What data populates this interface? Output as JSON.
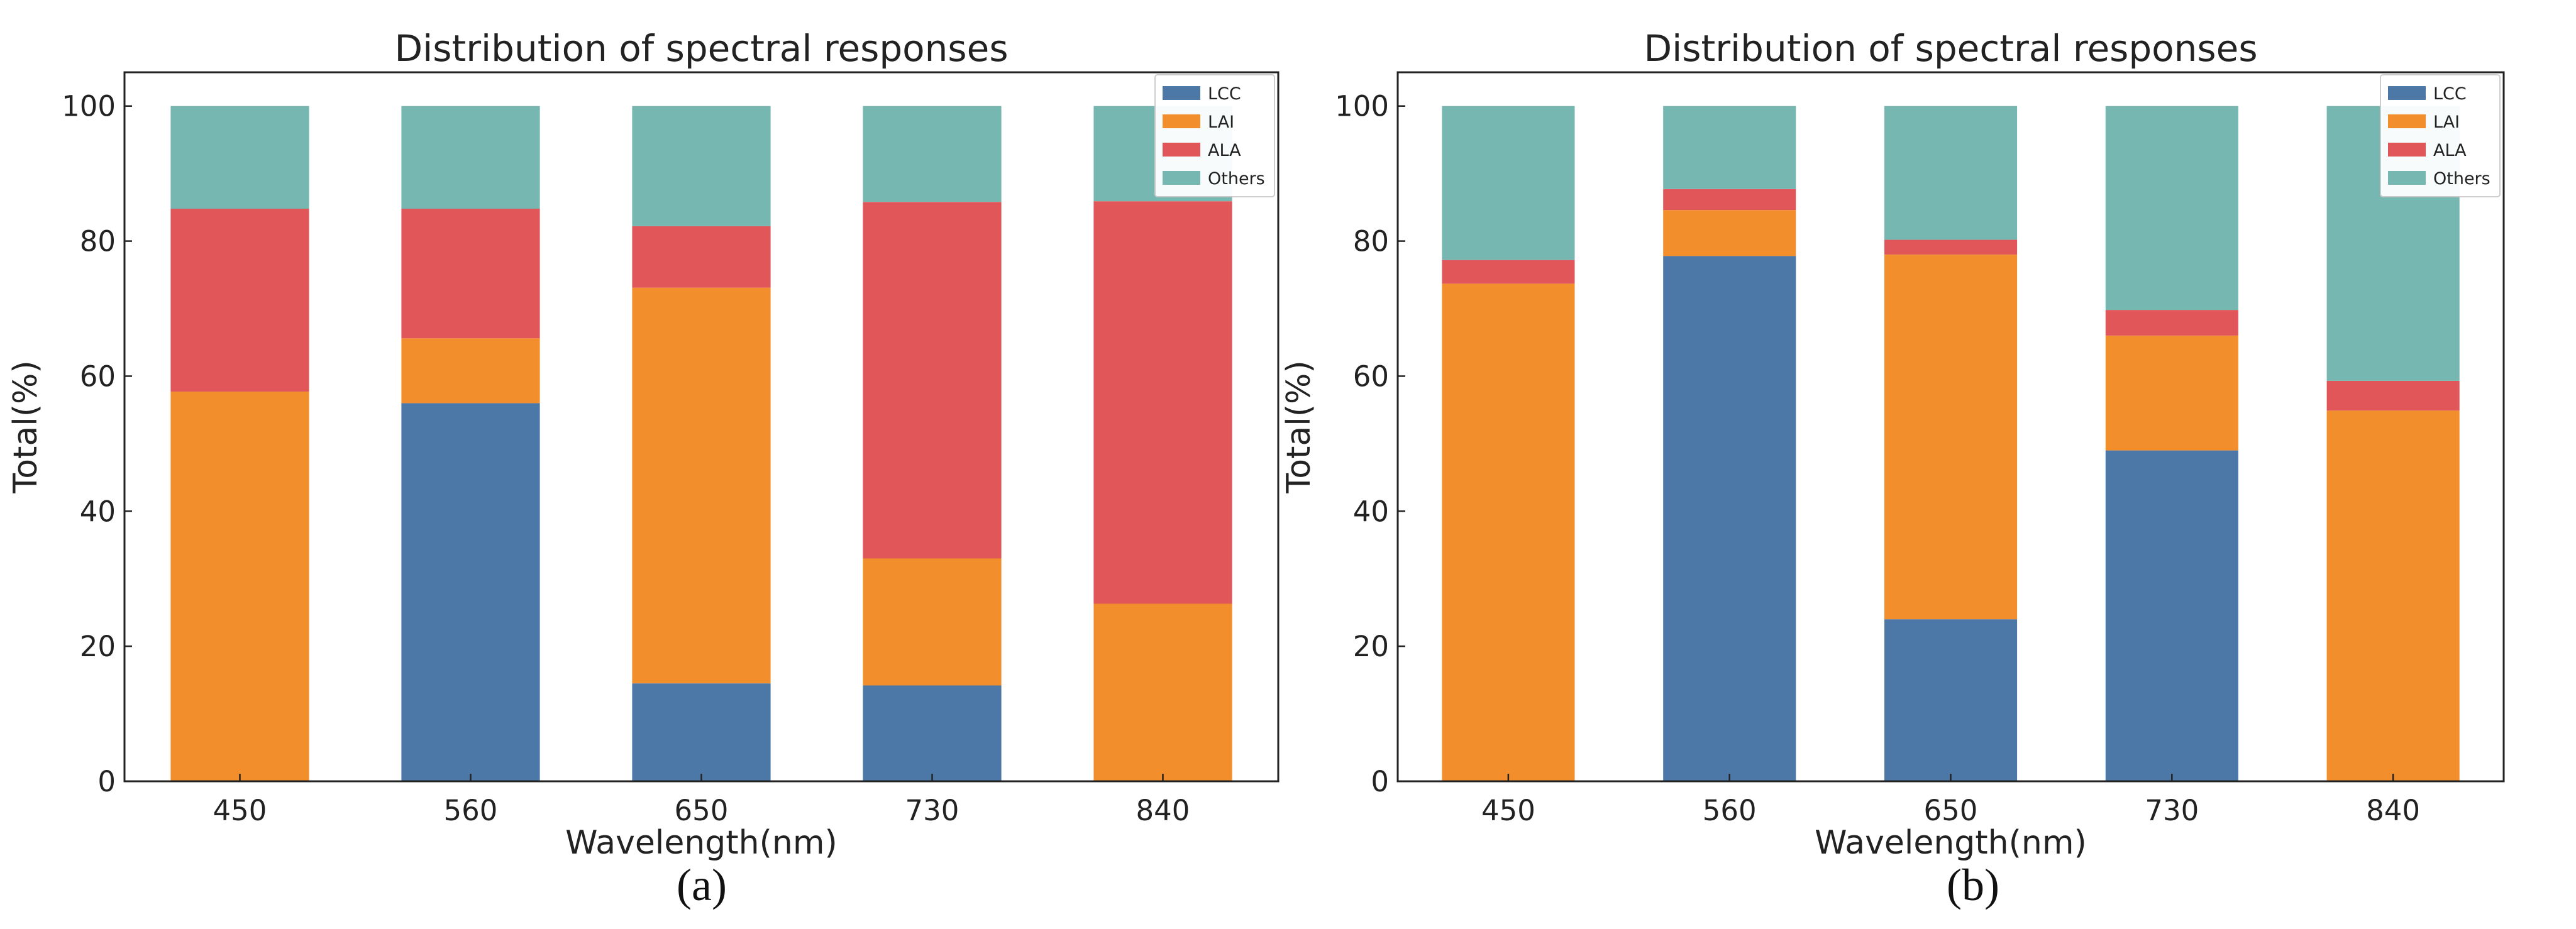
{
  "chart_data": [
    {
      "type": "bar",
      "stacked": true,
      "title": "Distribution of spectral responses",
      "xlabel": "Wavelength(nm)",
      "ylabel": "Total(%)",
      "caption": "(a)",
      "categories": [
        "450",
        "560",
        "650",
        "730",
        "840"
      ],
      "ylim": [
        0,
        105
      ],
      "yticks": [
        0,
        20,
        40,
        60,
        80,
        100
      ],
      "legend_position": "top-right",
      "series": [
        {
          "name": "LCC",
          "color": "#4c78a8",
          "values": [
            0,
            56,
            14.5,
            14.2,
            0
          ]
        },
        {
          "name": "LAI",
          "color": "#f28e2b",
          "values": [
            57.7,
            9.6,
            58.6,
            18.8,
            26.3
          ]
        },
        {
          "name": "ALA",
          "color": "#e15759",
          "values": [
            27.1,
            19.2,
            9.1,
            52.8,
            59.6
          ]
        },
        {
          "name": "Others",
          "color": "#76b7b2",
          "values": [
            15.2,
            15.2,
            17.8,
            14.2,
            14.1
          ]
        }
      ]
    },
    {
      "type": "bar",
      "stacked": true,
      "title": "Distribution of spectral responses",
      "xlabel": "Wavelength(nm)",
      "ylabel": "Total(%)",
      "caption": "(b)",
      "categories": [
        "450",
        "560",
        "650",
        "730",
        "840"
      ],
      "ylim": [
        0,
        105
      ],
      "yticks": [
        0,
        20,
        40,
        60,
        80,
        100
      ],
      "legend_position": "top-right",
      "series": [
        {
          "name": "LCC",
          "color": "#4c78a8",
          "values": [
            0,
            77.8,
            24,
            49,
            0
          ]
        },
        {
          "name": "LAI",
          "color": "#f28e2b",
          "values": [
            73.7,
            6.8,
            54,
            17,
            54.9
          ]
        },
        {
          "name": "ALA",
          "color": "#e15759",
          "values": [
            3.5,
            3.1,
            2.2,
            3.8,
            4.4
          ]
        },
        {
          "name": "Others",
          "color": "#76b7b2",
          "values": [
            22.8,
            12.3,
            19.8,
            30.2,
            40.7
          ]
        }
      ]
    }
  ]
}
